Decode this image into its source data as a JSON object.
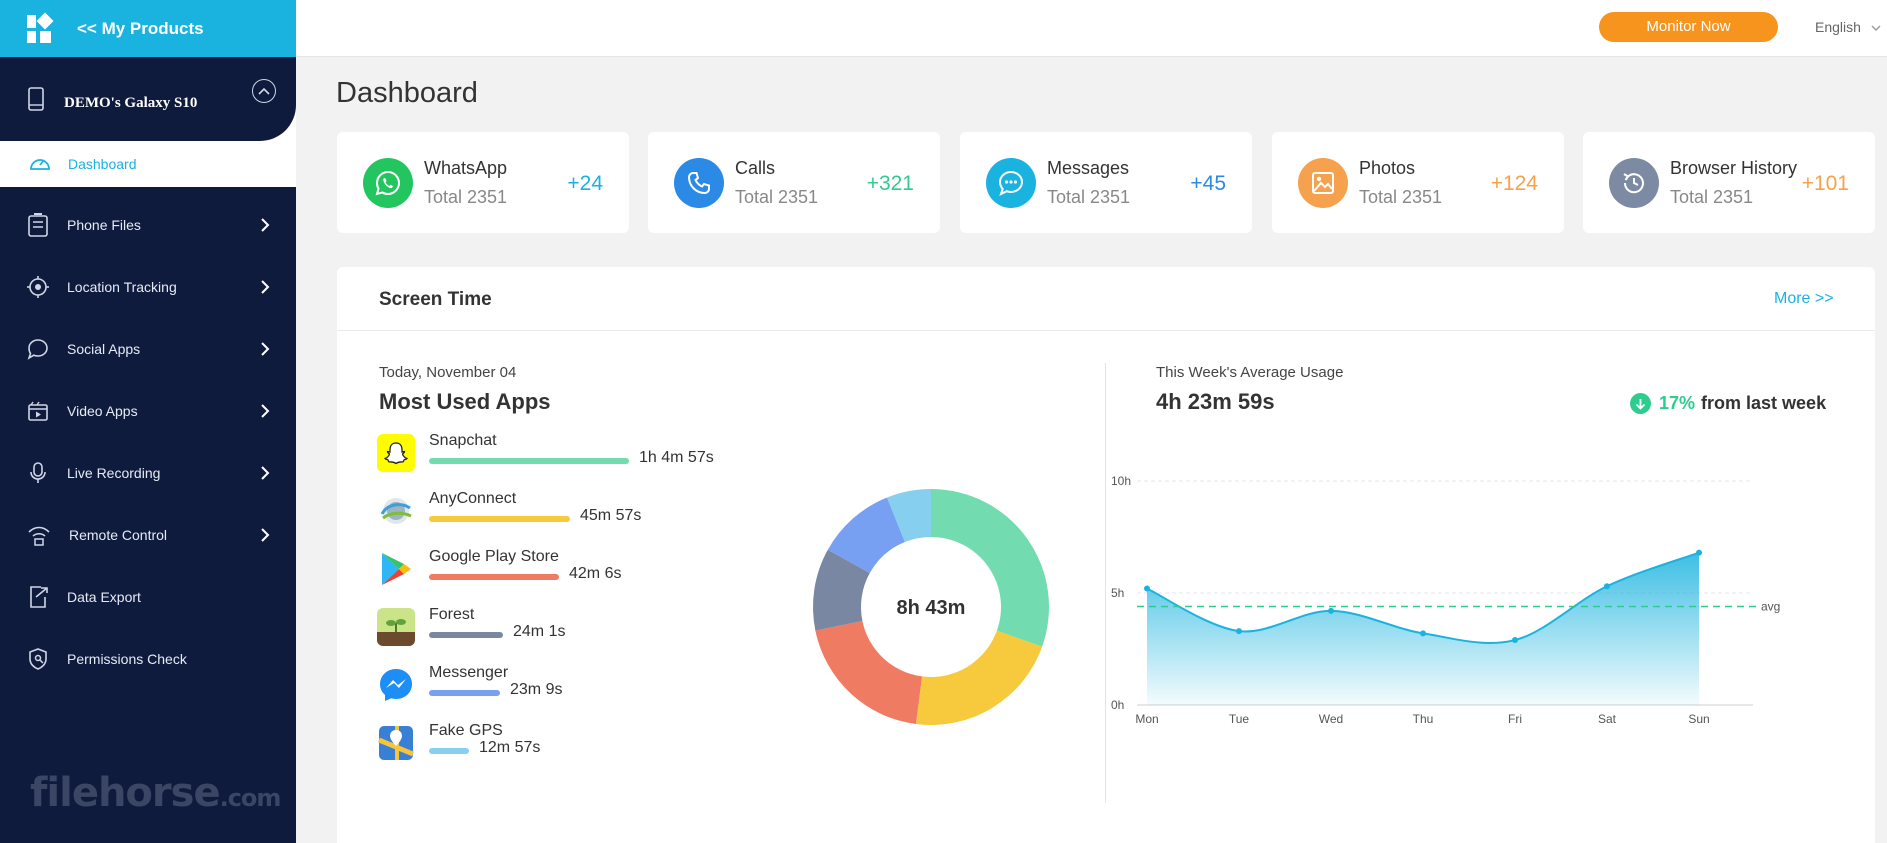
{
  "sidebar": {
    "products_label": "<< My Products",
    "device_name": "DEMO's Galaxy S10",
    "items": [
      {
        "label": "Dashboard",
        "icon": "speedometer-icon",
        "active": true
      },
      {
        "label": "Phone Files",
        "icon": "file-icon"
      },
      {
        "label": "Location Tracking",
        "icon": "target-icon"
      },
      {
        "label": "Social Apps",
        "icon": "chat-bubble-icon"
      },
      {
        "label": "Video Apps",
        "icon": "video-icon"
      },
      {
        "label": "Live Recording",
        "icon": "microphone-icon"
      },
      {
        "label": "Remote Control",
        "icon": "wifi-icon"
      },
      {
        "label": "Data Export",
        "icon": "export-icon"
      },
      {
        "label": "Permissions Check",
        "icon": "shield-icon"
      }
    ],
    "watermark": "filehorse",
    "watermark_suffix": ".com"
  },
  "topbar": {
    "monitor_button": "Monitor Now",
    "language": "English"
  },
  "page_title": "Dashboard",
  "cards": [
    {
      "name": "WhatsApp",
      "total": "Total 2351",
      "delta": "+24",
      "color": "#22c55e",
      "delta_color": "#1ab3df"
    },
    {
      "name": "Calls",
      "total": "Total 2351",
      "delta": "+321",
      "color": "#2b8ae6",
      "delta_color": "#2ecc8f"
    },
    {
      "name": "Messages",
      "total": "Total 2351",
      "delta": "+45",
      "color": "#1ab3df",
      "delta_color": "#2b8ae6"
    },
    {
      "name": "Photos",
      "total": "Total 2351",
      "delta": "+124",
      "color": "#f5a14e",
      "delta_color": "#f5a14e"
    },
    {
      "name": "Browser History",
      "total": "Total 2351",
      "delta": "+101",
      "color": "#7d8aa3",
      "delta_color": "#f5a14e"
    }
  ],
  "screen_time": {
    "title": "Screen Time",
    "more": "More >>",
    "date": "Today, November 04",
    "most_used": "Most Used Apps",
    "apps": [
      {
        "name": "Snapchat",
        "duration": "1h 4m 57s",
        "minutes": 64.95,
        "color": "#72dcb0"
      },
      {
        "name": "AnyConnect",
        "duration": "45m 57s",
        "minutes": 45.95,
        "color": "#f7c93c"
      },
      {
        "name": "Google Play Store",
        "duration": "42m 6s",
        "minutes": 42.1,
        "color": "#ef7b62"
      },
      {
        "name": "Forest",
        "duration": "24m 1s",
        "minutes": 24.02,
        "color": "#7a87a3"
      },
      {
        "name": "Messenger",
        "duration": "23m 9s",
        "minutes": 23.15,
        "color": "#77a0f2"
      },
      {
        "name": "Fake GPS",
        "duration": "12m 57s",
        "minutes": 12.95,
        "color": "#86cfee"
      }
    ],
    "total_today": "8h 43m",
    "week_label": "This Week's Average Usage",
    "week_average": "4h 23m 59s",
    "trend_percent": "17%",
    "trend_text": "from last week",
    "trend_color": "#2ecc8f"
  },
  "chart_data": {
    "type": "area",
    "x": [
      "Mon",
      "Tue",
      "Wed",
      "Thu",
      "Fri",
      "Sat",
      "Sun"
    ],
    "series": [
      {
        "values": [
          5.2,
          3.3,
          4.2,
          3.2,
          2.9,
          5.3,
          6.8
        ]
      }
    ],
    "yticks": [
      "0h",
      "5h",
      "10h"
    ],
    "ylim": [
      0,
      10
    ],
    "avg_value": 4.4,
    "avg_label": "avg",
    "color": "#1ab3df"
  }
}
